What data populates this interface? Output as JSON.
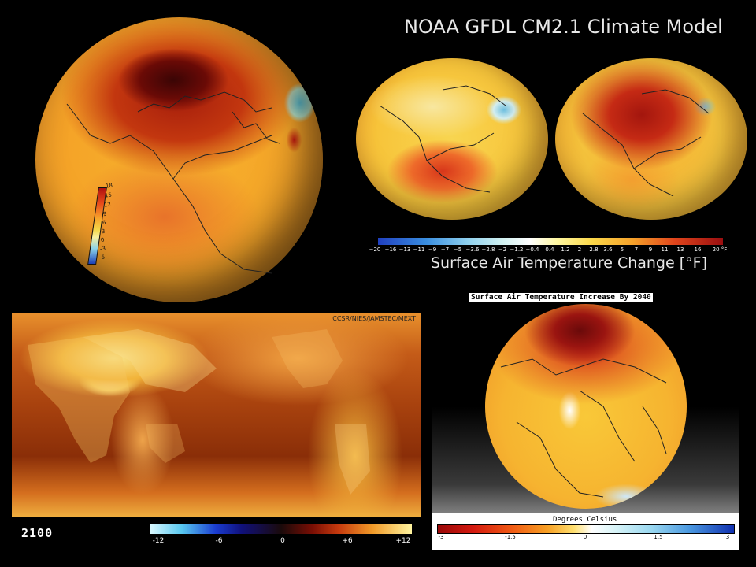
{
  "panel1": {
    "scale_labels": [
      "18",
      "15",
      "12",
      "9",
      "6",
      "3",
      "0",
      "-3",
      "-6"
    ]
  },
  "panel2": {
    "title": "NOAA GFDL CM2.1 Climate Model",
    "ticks": [
      "−20",
      "−16",
      "−13",
      "−11",
      "−9",
      "−7",
      "−5",
      "−3.6",
      "−2.8",
      "−2",
      "−1.2",
      "−0.4",
      "0.4",
      "1.2",
      "2",
      "2.8",
      "3.6",
      "5",
      "7",
      "9",
      "11",
      "13",
      "16",
      "20 °F"
    ],
    "caption": "Surface Air Temperature Change [°F]"
  },
  "panel3": {
    "credit": "CCSR/NIES/JAMSTEC/MEXT",
    "year": "2100",
    "ticks": [
      "-12",
      "-6",
      "0",
      "+6",
      "+12"
    ]
  },
  "panel4": {
    "title": "Surface Air Temperature Increase By 2040",
    "units": "Degrees Celsius",
    "ticks": [
      "-3",
      "-1.5",
      "0",
      "1.5",
      "3"
    ]
  }
}
